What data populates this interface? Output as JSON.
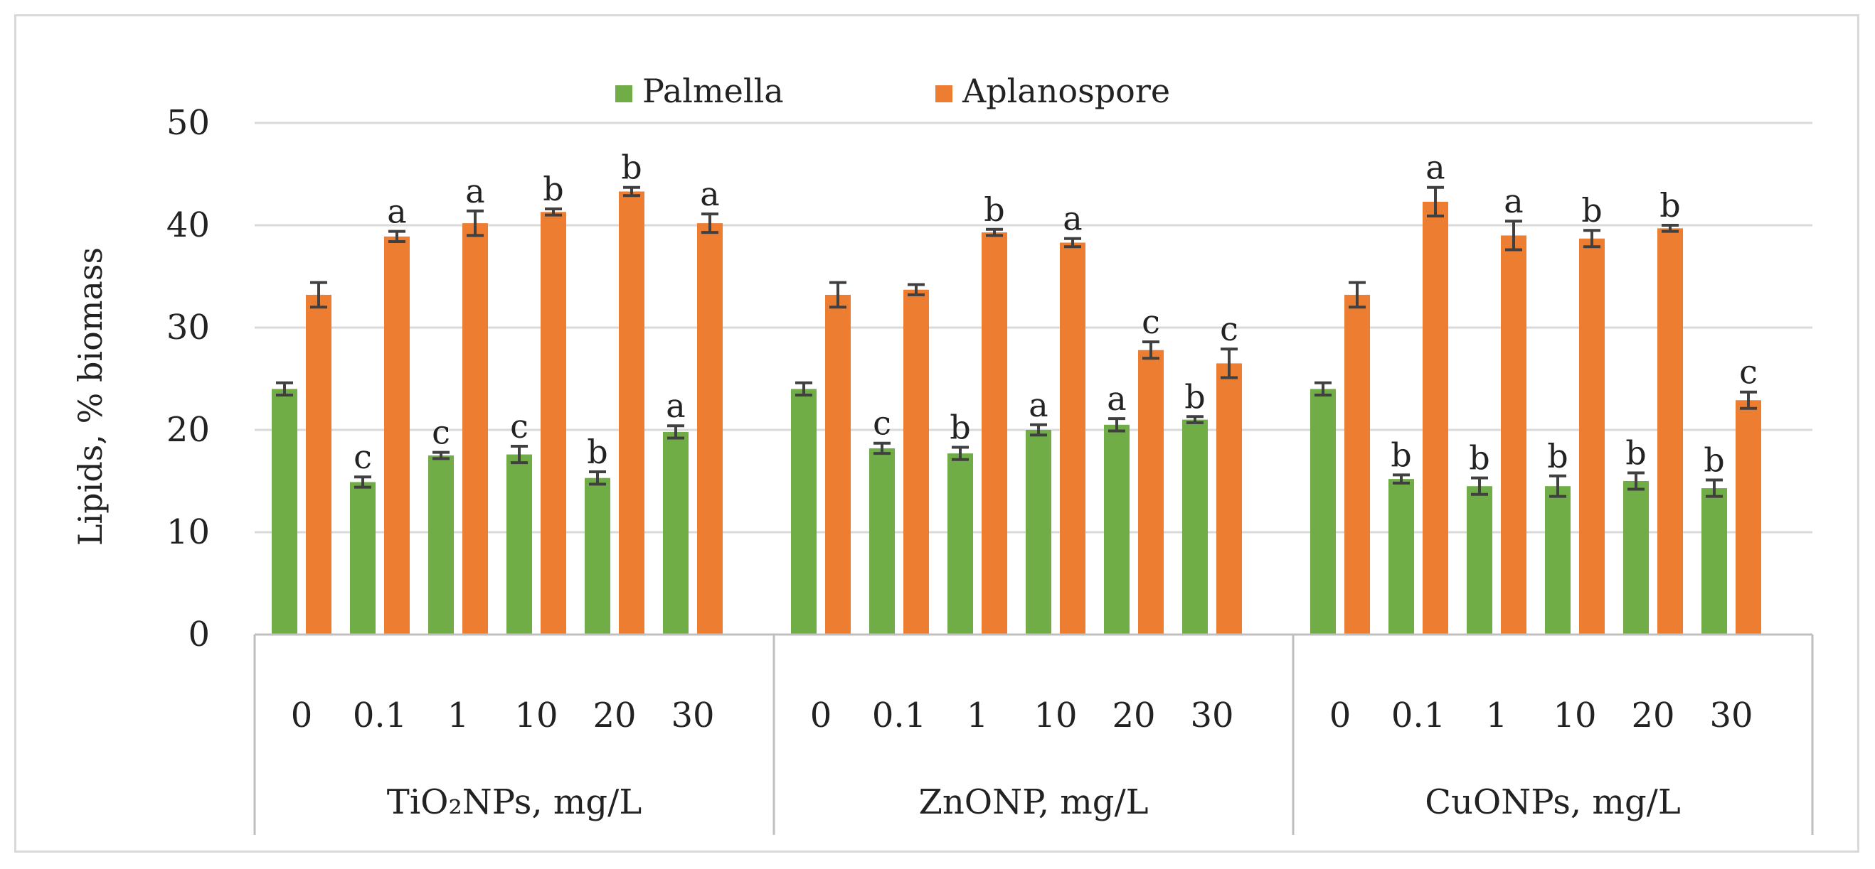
{
  "chart_data": {
    "type": "bar",
    "title": "",
    "ylabel": "Lipids, % biomass",
    "xlabel": "",
    "ylim": [
      0,
      50
    ],
    "yticks": [
      0,
      10,
      20,
      30,
      40,
      50
    ],
    "grid": true,
    "legend_position": "top",
    "series": [
      {
        "name": "Palmella",
        "color": "#70ad47"
      },
      {
        "name": "Aplanospore",
        "color": "#ed7d31"
      }
    ],
    "error_color": "#404040",
    "groups": [
      {
        "label": "TiO₂NPs, mg/L",
        "categories": [
          "0",
          "0.1",
          "1",
          "10",
          "20",
          "30"
        ],
        "palmella": [
          24.0,
          14.9,
          17.5,
          17.6,
          15.3,
          19.8
        ],
        "palmella_err": [
          0.6,
          0.5,
          0.3,
          0.8,
          0.6,
          0.6
        ],
        "palmella_letters": [
          "",
          "c",
          "c",
          "c",
          "b",
          "a"
        ],
        "aplanospore": [
          33.2,
          38.9,
          40.2,
          41.3,
          43.3,
          40.2
        ],
        "aplanospore_err": [
          1.2,
          0.5,
          1.2,
          0.3,
          0.4,
          0.9
        ],
        "aplanospore_letters": [
          "",
          "a",
          "a",
          "b",
          "b",
          "a"
        ]
      },
      {
        "label": "ZnONP, mg/L",
        "categories": [
          "0",
          "0.1",
          "1",
          "10",
          "20",
          "30"
        ],
        "palmella": [
          24.0,
          18.2,
          17.7,
          20.0,
          20.5,
          21.0
        ],
        "palmella_err": [
          0.6,
          0.5,
          0.6,
          0.5,
          0.6,
          0.3
        ],
        "palmella_letters": [
          "",
          "c",
          "b",
          "a",
          "a",
          "b"
        ],
        "aplanospore": [
          33.2,
          33.7,
          39.3,
          38.3,
          27.8,
          26.5
        ],
        "aplanospore_err": [
          1.2,
          0.5,
          0.3,
          0.4,
          0.8,
          1.4
        ],
        "aplanospore_letters": [
          "",
          "",
          "b",
          "a",
          "c",
          "c"
        ]
      },
      {
        "label": "CuONPs, mg/L",
        "categories": [
          "0",
          "0.1",
          "1",
          "10",
          "20",
          "30"
        ],
        "palmella": [
          24.0,
          15.2,
          14.5,
          14.5,
          15.0,
          14.3
        ],
        "palmella_err": [
          0.6,
          0.4,
          0.8,
          1.0,
          0.8,
          0.8
        ],
        "palmella_letters": [
          "",
          "b",
          "b",
          "b",
          "b",
          "b"
        ],
        "aplanospore": [
          33.2,
          42.3,
          39.0,
          38.7,
          39.7,
          22.9
        ],
        "aplanospore_err": [
          1.2,
          1.4,
          1.4,
          0.8,
          0.3,
          0.8
        ],
        "aplanospore_letters": [
          "",
          "a",
          "a",
          "b",
          "b",
          "c"
        ]
      }
    ]
  }
}
